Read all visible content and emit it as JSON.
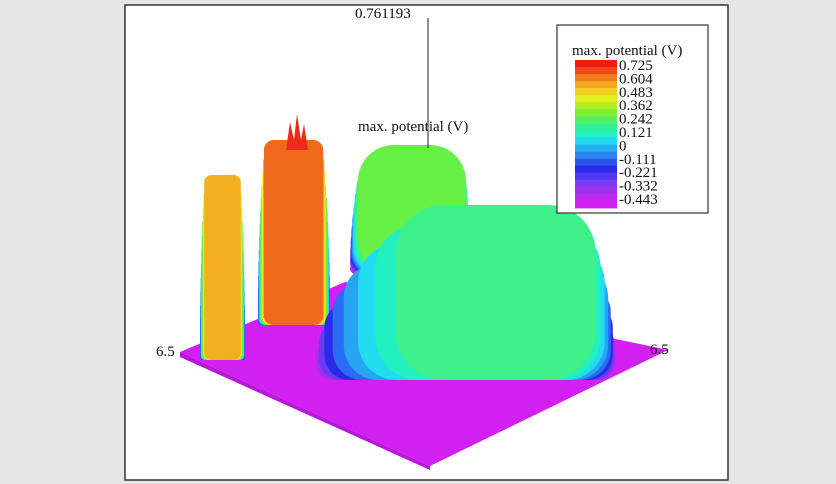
{
  "annotations": {
    "peak": "0.761193",
    "surface_label": "max. potential (V)",
    "left_axis": "6.5",
    "right_axis": "6.5"
  },
  "legend": {
    "title": "max. potential (V)",
    "labels": [
      "0.725",
      "0.604",
      "0.483",
      "0.362",
      "0.242",
      "0.121",
      "0",
      "-0.111",
      "-0.221",
      "-0.332",
      "-0.443"
    ]
  }
}
